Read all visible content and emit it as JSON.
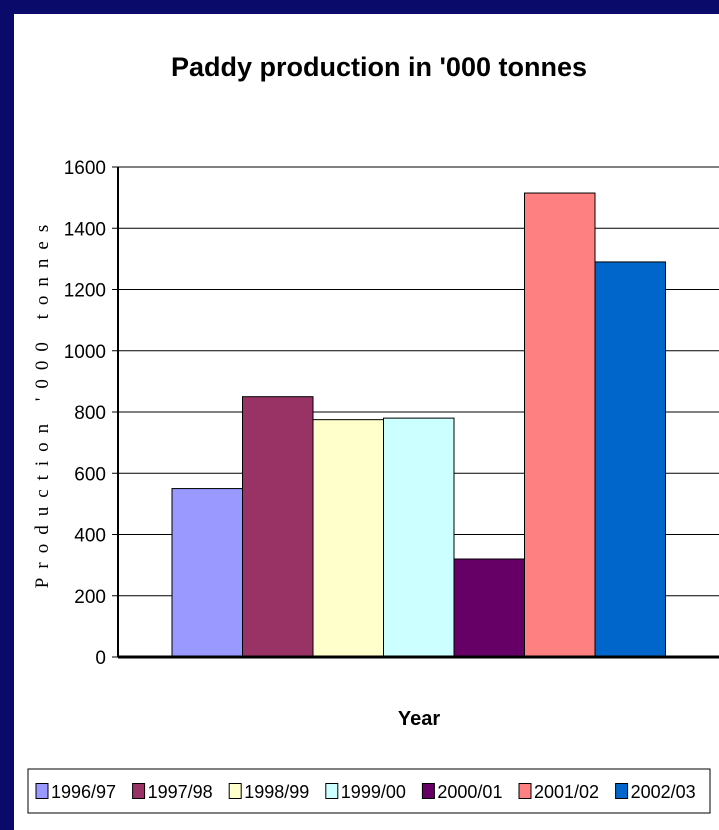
{
  "chart_data": {
    "type": "bar",
    "title": "Paddy production in '000 tonnes",
    "xlabel": "Year",
    "ylabel": "Production '000 tonnes",
    "ylim": [
      0,
      1600
    ],
    "yticks": [
      0,
      200,
      400,
      600,
      800,
      1000,
      1200,
      1400,
      1600
    ],
    "grid": true,
    "legend_position": "bottom",
    "series": [
      {
        "name": "1996/97",
        "value": 550,
        "color": "#9999ff"
      },
      {
        "name": "1997/98",
        "value": 850,
        "color": "#993366"
      },
      {
        "name": "1998/99",
        "value": 775,
        "color": "#ffffcc"
      },
      {
        "name": "1999/00",
        "value": 780,
        "color": "#ccffff"
      },
      {
        "name": "2000/01",
        "value": 320,
        "color": "#660066"
      },
      {
        "name": "2001/02",
        "value": 1515,
        "color": "#ff8080"
      },
      {
        "name": "2002/03",
        "value": 1290,
        "color": "#0066cc"
      }
    ]
  }
}
